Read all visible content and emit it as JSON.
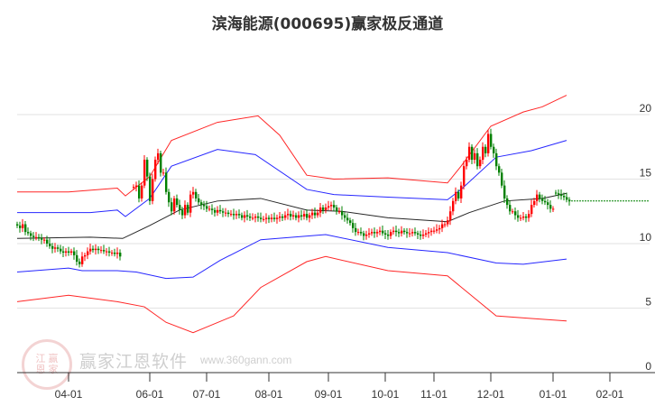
{
  "chart_data": {
    "type": "candlestick-with-bands",
    "title": "滨海能源(000695)赢家极反通道",
    "y_ticks": [
      20,
      15,
      10,
      5,
      0
    ],
    "ylim": [
      0,
      22
    ],
    "x_ticks": [
      {
        "label": "04-01",
        "t": 19
      },
      {
        "label": "06-01",
        "t": 49
      },
      {
        "label": "07-01",
        "t": 70
      },
      {
        "label": "08-01",
        "t": 93
      },
      {
        "label": "09-01",
        "t": 115
      },
      {
        "label": "10-01",
        "t": 136
      },
      {
        "label": "11-01",
        "t": 154
      },
      {
        "label": "12-01",
        "t": 175
      },
      {
        "label": "01-01",
        "t": 198
      },
      {
        "label": "02-01",
        "t": 219
      }
    ],
    "grid": true,
    "candle_segments": [
      {
        "start": 0,
        "closes": [
          11.4,
          11.2,
          11.5,
          10.9,
          10.8,
          10.6,
          10.5,
          10.5,
          10.4,
          10.3,
          10.3,
          10.0,
          9.8,
          9.6,
          9.7,
          9.6,
          9.4,
          9.3,
          9.4,
          9.3,
          9.4,
          9.1,
          8.6,
          8.4,
          9.0,
          9.1,
          9.4,
          9.6,
          9.5,
          9.6,
          9.5,
          9.5,
          9.4,
          9.4,
          9.3,
          9.3,
          9.2,
          9.3,
          9.0
        ]
      },
      {
        "start": 43,
        "closes": [
          14.4,
          14.5,
          13.5,
          14.5,
          16.5,
          15.2,
          13.3,
          15.0,
          16.5,
          17.0,
          15.5,
          15.5,
          14.0,
          13.2,
          12.5,
          13.5,
          13.0,
          12.6,
          12.2,
          13.0,
          12.4,
          13.8,
          14.0,
          13.5,
          13.2,
          13.0,
          12.9,
          12.7,
          12.7,
          12.6,
          12.4,
          12.6,
          12.5,
          12.4,
          12.4,
          12.3,
          12.3,
          12.2,
          12.3,
          12.2,
          12.0,
          12.2,
          12.1,
          12.0,
          12.0,
          12.1,
          12.0,
          11.9,
          11.9,
          12.0,
          11.9,
          12.0,
          11.9,
          12.0,
          12.1,
          12.0,
          12.2,
          12.3,
          12.1,
          12.2,
          12.0,
          12.2,
          12.1,
          12.3,
          12.0,
          12.2,
          12.4,
          12.2,
          12.4,
          12.8,
          12.6,
          12.8,
          12.9,
          13.0,
          12.8,
          12.5,
          12.5,
          12.2,
          12.0,
          11.8,
          11.6,
          11.2,
          10.9,
          10.9,
          10.8,
          10.6,
          10.7,
          10.8,
          10.9,
          10.8,
          10.9,
          11.0,
          10.8,
          10.7,
          10.6,
          10.9,
          11.0,
          10.9,
          10.8,
          11.0,
          10.9,
          10.8,
          10.8,
          10.9,
          10.8,
          10.7,
          10.6,
          10.7,
          10.8,
          10.9,
          11.0,
          11.0,
          11.1,
          11.2,
          11.5,
          11.5,
          11.8,
          12.5,
          13.3,
          14.0,
          13.5,
          14.5,
          16.0,
          16.5,
          17.5,
          16.5,
          17.0,
          16.0,
          16.5,
          17.5,
          17.0,
          18.5,
          17.5,
          17.0,
          16.0,
          15.5,
          14.5,
          13.5,
          13.0,
          12.5,
          12.5,
          12.2,
          12.0,
          12.0,
          12.1,
          12.0,
          12.3,
          13.0,
          13.3,
          13.8,
          13.5,
          13.3,
          13.2,
          13.0,
          12.7,
          12.7
        ]
      },
      {
        "start": 199,
        "closes": [
          13.9,
          13.8,
          13.7,
          13.6,
          13.4,
          13.3
        ]
      }
    ],
    "last_close_line": 13.3,
    "bands": [
      {
        "name": "upper-outer",
        "color": "#ff0000",
        "points": [
          [
            0,
            14.0
          ],
          [
            19,
            14.0
          ],
          [
            37,
            14.3
          ],
          [
            40,
            13.7
          ],
          [
            49,
            15.2
          ],
          [
            57,
            18.0
          ],
          [
            74,
            19.4
          ],
          [
            89,
            19.9
          ],
          [
            97,
            18.4
          ],
          [
            107,
            15.3
          ],
          [
            117,
            15.0
          ],
          [
            137,
            15.1
          ],
          [
            159,
            14.7
          ],
          [
            164,
            16.0
          ],
          [
            175,
            19.1
          ],
          [
            187,
            20.2
          ],
          [
            194,
            20.6
          ],
          [
            203,
            21.5
          ]
        ]
      },
      {
        "name": "upper-inner",
        "color": "#0000ff",
        "points": [
          [
            0,
            12.4
          ],
          [
            27,
            12.4
          ],
          [
            37,
            12.6
          ],
          [
            40,
            12.1
          ],
          [
            49,
            13.5
          ],
          [
            57,
            16.0
          ],
          [
            74,
            17.3
          ],
          [
            88,
            16.9
          ],
          [
            107,
            14.2
          ],
          [
            117,
            13.8
          ],
          [
            137,
            13.6
          ],
          [
            159,
            13.4
          ],
          [
            164,
            14.2
          ],
          [
            177,
            16.7
          ],
          [
            190,
            17.2
          ],
          [
            203,
            18.0
          ]
        ]
      },
      {
        "name": "middle",
        "color": "#000000",
        "points": [
          [
            0,
            10.4
          ],
          [
            27,
            10.5
          ],
          [
            39,
            10.4
          ],
          [
            49,
            11.4
          ],
          [
            60,
            12.6
          ],
          [
            74,
            13.3
          ],
          [
            90,
            13.5
          ],
          [
            107,
            12.6
          ],
          [
            120,
            12.5
          ],
          [
            137,
            12.0
          ],
          [
            159,
            11.7
          ],
          [
            167,
            12.4
          ],
          [
            180,
            13.3
          ],
          [
            194,
            13.5
          ],
          [
            203,
            13.9
          ]
        ]
      },
      {
        "name": "lower-inner",
        "color": "#0000ff",
        "points": [
          [
            0,
            7.8
          ],
          [
            19,
            8.1
          ],
          [
            24,
            7.9
          ],
          [
            37,
            7.9
          ],
          [
            44,
            7.8
          ],
          [
            55,
            7.3
          ],
          [
            65,
            7.4
          ],
          [
            75,
            8.7
          ],
          [
            90,
            10.3
          ],
          [
            114,
            10.7
          ],
          [
            137,
            9.7
          ],
          [
            159,
            9.3
          ],
          [
            177,
            8.5
          ],
          [
            187,
            8.4
          ],
          [
            203,
            8.8
          ]
        ]
      },
      {
        "name": "lower-outer",
        "color": "#ff0000",
        "points": [
          [
            0,
            5.5
          ],
          [
            19,
            6.0
          ],
          [
            37,
            5.5
          ],
          [
            47,
            5.1
          ],
          [
            55,
            3.9
          ],
          [
            65,
            3.1
          ],
          [
            80,
            4.4
          ],
          [
            90,
            6.6
          ],
          [
            107,
            8.6
          ],
          [
            114,
            9.0
          ],
          [
            137,
            7.9
          ],
          [
            159,
            7.5
          ],
          [
            177,
            4.4
          ],
          [
            190,
            4.2
          ],
          [
            203,
            4.0
          ]
        ]
      }
    ]
  },
  "watermark": {
    "brand": "赢家江恩软件",
    "url": "www.360gann.com",
    "seal": "江赢恩家"
  }
}
